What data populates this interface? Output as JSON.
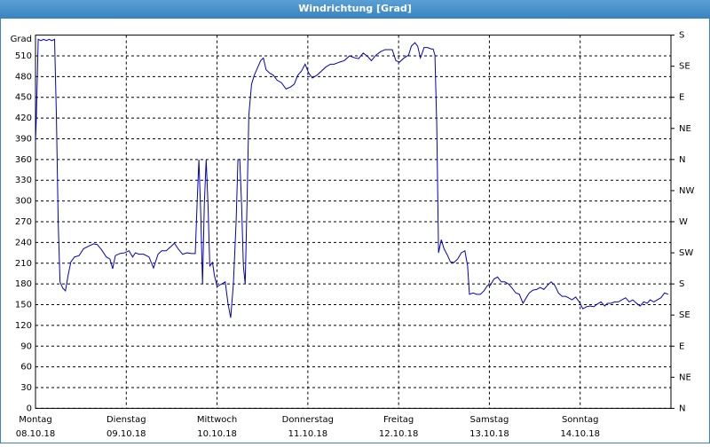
{
  "chart_data": {
    "type": "line",
    "title": "Windrichtung [Grad]",
    "y_unit": "Grad",
    "xlim": [
      0,
      7
    ],
    "xticks": [
      {
        "value": 0,
        "label": "Montag"
      },
      {
        "value": 1,
        "label": "Dienstag"
      },
      {
        "value": 2,
        "label": "Mittwoch"
      },
      {
        "value": 3,
        "label": "Donnerstag"
      },
      {
        "value": 4,
        "label": "Freitag"
      },
      {
        "value": 5,
        "label": "Samstag"
      },
      {
        "value": 6,
        "label": "Sonntag"
      }
    ],
    "xtick_dates": [
      "08.10.18",
      "09.10.18",
      "10.10.18",
      "11.10.18",
      "12.10.18",
      "13.10.18",
      "14.10.18"
    ],
    "ylim": [
      0,
      540
    ],
    "yticks": [
      0,
      30,
      60,
      90,
      120,
      150,
      180,
      210,
      240,
      270,
      300,
      330,
      360,
      390,
      420,
      450,
      480,
      510
    ],
    "y2lim": [
      0,
      540
    ],
    "y2ticks": [
      {
        "value": 0,
        "label": "N"
      },
      {
        "value": 45,
        "label": "NE"
      },
      {
        "value": 90,
        "label": "E"
      },
      {
        "value": 135,
        "label": "SE"
      },
      {
        "value": 180,
        "label": "S"
      },
      {
        "value": 225,
        "label": "SW"
      },
      {
        "value": 270,
        "label": "W"
      },
      {
        "value": 315,
        "label": "NW"
      },
      {
        "value": 360,
        "label": "N"
      },
      {
        "value": 405,
        "label": "NE"
      },
      {
        "value": 450,
        "label": "E"
      },
      {
        "value": 495,
        "label": "SE"
      },
      {
        "value": 540,
        "label": "S"
      }
    ],
    "grid": true,
    "series": [
      {
        "color": "#0000c0",
        "x": [
          0,
          0.01,
          0.03,
          0.06,
          0.09,
          0.12,
          0.15,
          0.18,
          0.21,
          0.23,
          0.25,
          0.27,
          0.3,
          0.33,
          0.36,
          0.39,
          0.43,
          0.48,
          0.53,
          0.59,
          0.64,
          0.68,
          0.73,
          0.78,
          0.82,
          0.85,
          0.88,
          0.93,
          0.98,
          1.03,
          1.07,
          1.1,
          1.14,
          1.19,
          1.25,
          1.3,
          1.35,
          1.39,
          1.44,
          1.5,
          1.53,
          1.57,
          1.62,
          1.67,
          1.72,
          1.76,
          1.78,
          1.8,
          1.82,
          1.84,
          1.86,
          1.88,
          1.9,
          1.92,
          1.95,
          1.97,
          2.0,
          2.05,
          2.09,
          2.12,
          2.15,
          2.18,
          2.21,
          2.23,
          2.25,
          2.27,
          2.29,
          2.31,
          2.33,
          2.35,
          2.38,
          2.41,
          2.45,
          2.48,
          2.51,
          2.54,
          2.58,
          2.62,
          2.66,
          2.71,
          2.76,
          2.81,
          2.85,
          2.89,
          2.93,
          2.97,
          3.01,
          3.05,
          3.1,
          3.15,
          3.2,
          3.25,
          3.29,
          3.35,
          3.4,
          3.46,
          3.52,
          3.56,
          3.61,
          3.66,
          3.7,
          3.75,
          3.8,
          3.85,
          3.89,
          3.93,
          3.97,
          4.01,
          4.06,
          4.11,
          4.14,
          4.18,
          4.21,
          4.24,
          4.26,
          4.28,
          4.32,
          4.36,
          4.38,
          4.4,
          4.42,
          4.44,
          4.47,
          4.5,
          4.54,
          4.57,
          4.61,
          4.65,
          4.69,
          4.73,
          4.76,
          4.78,
          4.82,
          4.86,
          4.9,
          4.94,
          4.98,
          5.01,
          5.05,
          5.09,
          5.13,
          5.17,
          5.21,
          5.25,
          5.29,
          5.33,
          5.37,
          5.41,
          5.44,
          5.48,
          5.52,
          5.56,
          5.6,
          5.64,
          5.68,
          5.72,
          5.76,
          5.8,
          5.84,
          5.87,
          5.91,
          5.95,
          5.99,
          6.03,
          6.07,
          6.11,
          6.15,
          6.19,
          6.23,
          6.27,
          6.3,
          6.34,
          6.38,
          6.42,
          6.46,
          6.5,
          6.54,
          6.58,
          6.62,
          6.66,
          6.7,
          6.74,
          6.77,
          6.81,
          6.85,
          6.89,
          6.93,
          6.97
        ],
        "values": [
          385,
          424,
          534,
          532,
          534,
          532,
          534,
          532,
          534,
          424,
          270,
          183,
          174,
          170,
          193,
          212,
          219,
          221,
          231,
          235,
          238,
          237,
          229,
          219,
          216,
          202,
          221,
          224,
          225,
          228,
          219,
          225,
          223,
          223,
          219,
          203,
          223,
          228,
          228,
          235,
          239,
          231,
          223,
          225,
          224,
          224,
          296,
          360,
          283,
          180,
          296,
          360,
          296,
          206,
          211,
          193,
          176,
          180,
          183,
          152,
          131,
          180,
          270,
          360,
          360,
          296,
          206,
          180,
          296,
          424,
          469,
          482,
          494,
          503,
          507,
          490,
          485,
          482,
          475,
          471,
          462,
          465,
          469,
          482,
          488,
          498,
          485,
          478,
          482,
          488,
          494,
          498,
          498,
          501,
          503,
          510,
          507,
          506,
          514,
          509,
          503,
          511,
          516,
          519,
          519,
          519,
          503,
          501,
          507,
          511,
          524,
          529,
          524,
          507,
          514,
          522,
          522,
          520,
          520,
          511,
          411,
          225,
          244,
          231,
          221,
          212,
          211,
          216,
          225,
          228,
          206,
          165,
          167,
          165,
          165,
          170,
          178,
          178,
          187,
          190,
          183,
          183,
          180,
          174,
          167,
          165,
          152,
          161,
          167,
          171,
          172,
          175,
          172,
          178,
          183,
          178,
          167,
          162,
          162,
          160,
          157,
          161,
          154,
          144,
          147,
          148,
          147,
          151,
          154,
          148,
          152,
          152,
          154,
          154,
          157,
          160,
          154,
          157,
          152,
          148,
          154,
          152,
          157,
          154,
          157,
          160,
          167,
          165
        ]
      }
    ]
  }
}
